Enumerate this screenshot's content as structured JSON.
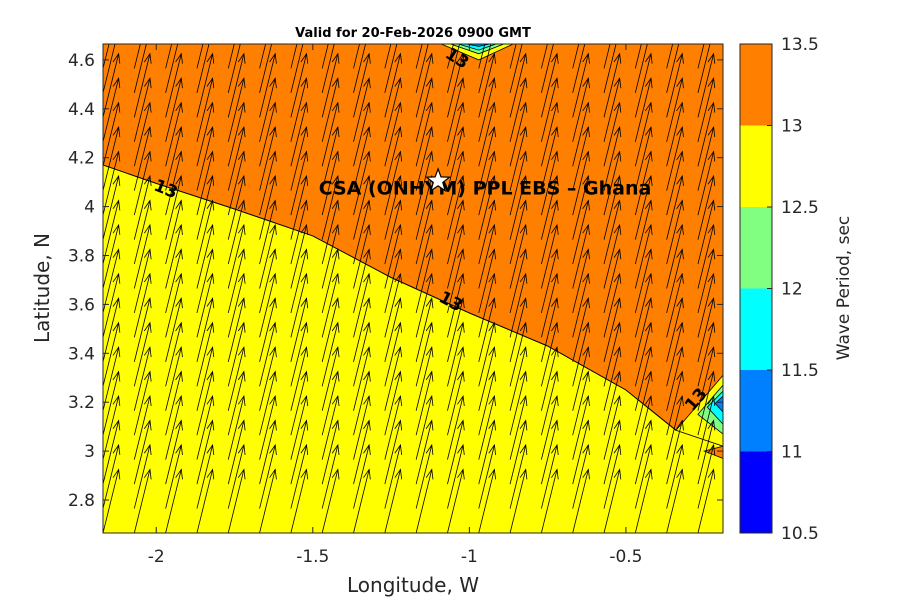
{
  "chart_data": {
    "type": "heatmap",
    "title": "Valid for 20-Feb-2026 0900 GMT",
    "xlabel": "Longitude, W",
    "ylabel": "Latitude, N",
    "xlim": [
      -2.17,
      -0.19
    ],
    "ylim": [
      2.665,
      4.665
    ],
    "x_ticks": [
      -2,
      -1.5,
      -1,
      -0.5
    ],
    "x_tick_labels": [
      "-2",
      "-1.5",
      "-1",
      "-0.5"
    ],
    "y_ticks": [
      2.8,
      3.0,
      3.2,
      3.4,
      3.6,
      3.8,
      4.0,
      4.2,
      4.4,
      4.6
    ],
    "y_tick_labels": [
      "2.8",
      "3",
      "3.2",
      "3.4",
      "3.6",
      "3.8",
      "4",
      "4.2",
      "4.4",
      "4.6"
    ],
    "colorbar": {
      "label": "Wave Period, sec",
      "levels": [
        10.5,
        11,
        11.5,
        12,
        12.5,
        13,
        13.5
      ],
      "tick_labels": [
        "10.5",
        "11",
        "11.5",
        "12",
        "12.5",
        "13",
        "13.5"
      ],
      "colors": [
        "#0000ff",
        "#0080ff",
        "#00ffff",
        "#80ff80",
        "#ffff00",
        "#ff8000"
      ]
    },
    "regions": [
      {
        "band": "12.5-13",
        "color": "#ffff00",
        "description": "south-west"
      },
      {
        "band": "13-13.5",
        "color": "#ff8000",
        "description": "north-east"
      }
    ],
    "contour_13_line": [
      [
        -2.17,
        4.17
      ],
      [
        -2.0,
        4.095
      ],
      [
        -1.75,
        3.99
      ],
      [
        -1.5,
        3.88
      ],
      [
        -1.25,
        3.71
      ],
      [
        -1.0,
        3.565
      ],
      [
        -0.75,
        3.43
      ],
      [
        -0.5,
        3.25
      ],
      [
        -0.34,
        3.085
      ]
    ],
    "contour_labels": [
      {
        "text": "13",
        "x": -1.97,
        "y": 4.07,
        "rotation": 22
      },
      {
        "text": "13",
        "x": -1.06,
        "y": 3.61,
        "rotation": 28
      },
      {
        "text": "13",
        "x": -1.04,
        "y": 4.605,
        "rotation": 32
      },
      {
        "text": "13",
        "x": -0.275,
        "y": 3.21,
        "rotation": -50
      }
    ],
    "vectors": {
      "description": "wave direction arrows pointing north-north-east",
      "x_start": -2.17,
      "x_step": 0.1,
      "y_start": 2.665,
      "y_step": 0.1,
      "dx": 0.05,
      "dy": 0.26
    },
    "annotations": [
      {
        "text": "CSA (ONHYM) PPL EBS  – Ghana",
        "x": -0.95,
        "y": 4.05
      }
    ],
    "marker": {
      "shape": "star",
      "x": -1.1,
      "y": 4.105,
      "color": "#ffffff"
    }
  }
}
